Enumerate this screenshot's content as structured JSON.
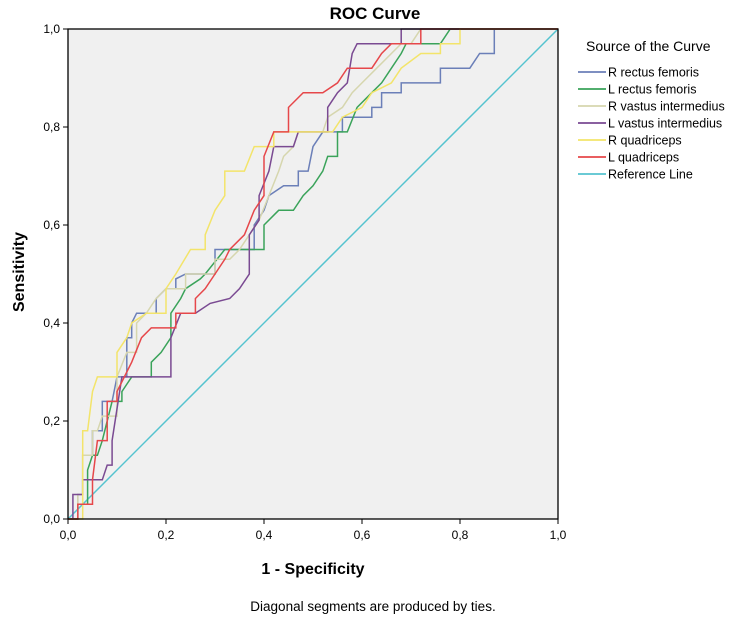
{
  "chart_data": {
    "type": "line",
    "title": "ROC Curve",
    "xlabel": "1 - Specificity",
    "ylabel": "Sensitivity",
    "xlim": [
      0,
      1
    ],
    "ylim": [
      0,
      1
    ],
    "x_ticks": [
      "0,0",
      "0,2",
      "0,4",
      "0,6",
      "0,8",
      "1,0"
    ],
    "y_ticks": [
      "0,0",
      "0,2",
      "0,4",
      "0,6",
      "0,8",
      "1,0"
    ],
    "legend_title": "Source of the Curve",
    "legend_position": "right",
    "footnote": "Diagonal segments are produced by ties.",
    "series": [
      {
        "name": "R rectus  femoris",
        "color": "#6b7fb8",
        "points": [
          [
            0,
            0
          ],
          [
            0.02,
            0
          ],
          [
            0.02,
            0.05
          ],
          [
            0.03,
            0.05
          ],
          [
            0.03,
            0.13
          ],
          [
            0.05,
            0.13
          ],
          [
            0.05,
            0.18
          ],
          [
            0.07,
            0.18
          ],
          [
            0.07,
            0.24
          ],
          [
            0.09,
            0.24
          ],
          [
            0.1,
            0.29
          ],
          [
            0.12,
            0.29
          ],
          [
            0.12,
            0.37
          ],
          [
            0.13,
            0.37
          ],
          [
            0.13,
            0.4
          ],
          [
            0.14,
            0.42
          ],
          [
            0.18,
            0.42
          ],
          [
            0.18,
            0.45
          ],
          [
            0.2,
            0.47
          ],
          [
            0.22,
            0.47
          ],
          [
            0.22,
            0.49
          ],
          [
            0.24,
            0.5
          ],
          [
            0.3,
            0.5
          ],
          [
            0.3,
            0.55
          ],
          [
            0.32,
            0.55
          ],
          [
            0.34,
            0.55
          ],
          [
            0.38,
            0.55
          ],
          [
            0.38,
            0.6
          ],
          [
            0.4,
            0.63
          ],
          [
            0.41,
            0.66
          ],
          [
            0.44,
            0.68
          ],
          [
            0.47,
            0.68
          ],
          [
            0.47,
            0.71
          ],
          [
            0.49,
            0.71
          ],
          [
            0.5,
            0.76
          ],
          [
            0.52,
            0.79
          ],
          [
            0.56,
            0.79
          ],
          [
            0.56,
            0.82
          ],
          [
            0.62,
            0.82
          ],
          [
            0.62,
            0.84
          ],
          [
            0.64,
            0.84
          ],
          [
            0.64,
            0.87
          ],
          [
            0.68,
            0.87
          ],
          [
            0.68,
            0.89
          ],
          [
            0.76,
            0.89
          ],
          [
            0.76,
            0.92
          ],
          [
            0.82,
            0.92
          ],
          [
            0.84,
            0.95
          ],
          [
            0.87,
            0.95
          ],
          [
            0.87,
            0.97
          ],
          [
            0.87,
            1
          ],
          [
            1,
            1
          ]
        ]
      },
      {
        "name": "L rectus  femoris",
        "color": "#3aa35a",
        "points": [
          [
            0,
            0
          ],
          [
            0.02,
            0
          ],
          [
            0.02,
            0.03
          ],
          [
            0.04,
            0.03
          ],
          [
            0.04,
            0.1
          ],
          [
            0.05,
            0.13
          ],
          [
            0.06,
            0.13
          ],
          [
            0.07,
            0.16
          ],
          [
            0.09,
            0.24
          ],
          [
            0.11,
            0.24
          ],
          [
            0.11,
            0.26
          ],
          [
            0.13,
            0.29
          ],
          [
            0.17,
            0.29
          ],
          [
            0.17,
            0.32
          ],
          [
            0.19,
            0.34
          ],
          [
            0.21,
            0.37
          ],
          [
            0.21,
            0.42
          ],
          [
            0.23,
            0.45
          ],
          [
            0.24,
            0.47
          ],
          [
            0.27,
            0.49
          ],
          [
            0.28,
            0.5
          ],
          [
            0.32,
            0.55
          ],
          [
            0.4,
            0.55
          ],
          [
            0.4,
            0.6
          ],
          [
            0.42,
            0.62
          ],
          [
            0.43,
            0.63
          ],
          [
            0.46,
            0.63
          ],
          [
            0.48,
            0.66
          ],
          [
            0.5,
            0.68
          ],
          [
            0.52,
            0.71
          ],
          [
            0.53,
            0.74
          ],
          [
            0.55,
            0.74
          ],
          [
            0.55,
            0.79
          ],
          [
            0.57,
            0.79
          ],
          [
            0.59,
            0.84
          ],
          [
            0.62,
            0.87
          ],
          [
            0.64,
            0.89
          ],
          [
            0.66,
            0.92
          ],
          [
            0.68,
            0.95
          ],
          [
            0.69,
            0.97
          ],
          [
            0.76,
            0.97
          ],
          [
            0.78,
            1
          ],
          [
            1,
            1
          ]
        ]
      },
      {
        "name": "R vastus intermedius",
        "color": "#d6d6ae",
        "points": [
          [
            0,
            0
          ],
          [
            0.02,
            0
          ],
          [
            0.02,
            0.05
          ],
          [
            0.03,
            0.05
          ],
          [
            0.03,
            0.13
          ],
          [
            0.05,
            0.13
          ],
          [
            0.05,
            0.18
          ],
          [
            0.06,
            0.18
          ],
          [
            0.07,
            0.21
          ],
          [
            0.1,
            0.21
          ],
          [
            0.1,
            0.29
          ],
          [
            0.12,
            0.34
          ],
          [
            0.14,
            0.34
          ],
          [
            0.14,
            0.4
          ],
          [
            0.16,
            0.42
          ],
          [
            0.18,
            0.45
          ],
          [
            0.2,
            0.47
          ],
          [
            0.24,
            0.47
          ],
          [
            0.24,
            0.5
          ],
          [
            0.3,
            0.5
          ],
          [
            0.3,
            0.53
          ],
          [
            0.33,
            0.53
          ],
          [
            0.35,
            0.55
          ],
          [
            0.37,
            0.58
          ],
          [
            0.39,
            0.61
          ],
          [
            0.41,
            0.66
          ],
          [
            0.43,
            0.71
          ],
          [
            0.44,
            0.74
          ],
          [
            0.46,
            0.76
          ],
          [
            0.47,
            0.79
          ],
          [
            0.52,
            0.79
          ],
          [
            0.53,
            0.82
          ],
          [
            0.56,
            0.84
          ],
          [
            0.58,
            0.87
          ],
          [
            0.6,
            0.89
          ],
          [
            0.63,
            0.92
          ],
          [
            0.66,
            0.95
          ],
          [
            0.68,
            0.97
          ],
          [
            0.7,
            0.97
          ],
          [
            0.72,
            1
          ],
          [
            1,
            1
          ]
        ]
      },
      {
        "name": "L vastus intermedius",
        "color": "#7a4a92",
        "points": [
          [
            0,
            0
          ],
          [
            0.01,
            0
          ],
          [
            0.01,
            0.05
          ],
          [
            0.03,
            0.05
          ],
          [
            0.03,
            0.08
          ],
          [
            0.07,
            0.08
          ],
          [
            0.08,
            0.11
          ],
          [
            0.09,
            0.11
          ],
          [
            0.09,
            0.16
          ],
          [
            0.11,
            0.29
          ],
          [
            0.21,
            0.29
          ],
          [
            0.21,
            0.37
          ],
          [
            0.23,
            0.42
          ],
          [
            0.26,
            0.42
          ],
          [
            0.29,
            0.44
          ],
          [
            0.33,
            0.45
          ],
          [
            0.35,
            0.47
          ],
          [
            0.37,
            0.5
          ],
          [
            0.37,
            0.58
          ],
          [
            0.39,
            0.61
          ],
          [
            0.39,
            0.66
          ],
          [
            0.41,
            0.71
          ],
          [
            0.42,
            0.76
          ],
          [
            0.46,
            0.76
          ],
          [
            0.47,
            0.79
          ],
          [
            0.53,
            0.79
          ],
          [
            0.53,
            0.84
          ],
          [
            0.55,
            0.87
          ],
          [
            0.57,
            0.89
          ],
          [
            0.58,
            0.95
          ],
          [
            0.59,
            0.97
          ],
          [
            0.68,
            0.97
          ],
          [
            0.68,
            1
          ],
          [
            1,
            1
          ]
        ]
      },
      {
        "name": "R quadriceps",
        "color": "#f3e46a",
        "points": [
          [
            0,
            0
          ],
          [
            0.03,
            0
          ],
          [
            0.03,
            0.18
          ],
          [
            0.04,
            0.18
          ],
          [
            0.05,
            0.26
          ],
          [
            0.06,
            0.29
          ],
          [
            0.1,
            0.29
          ],
          [
            0.1,
            0.34
          ],
          [
            0.12,
            0.37
          ],
          [
            0.13,
            0.4
          ],
          [
            0.16,
            0.42
          ],
          [
            0.2,
            0.42
          ],
          [
            0.2,
            0.47
          ],
          [
            0.22,
            0.5
          ],
          [
            0.25,
            0.55
          ],
          [
            0.28,
            0.55
          ],
          [
            0.28,
            0.58
          ],
          [
            0.3,
            0.63
          ],
          [
            0.32,
            0.66
          ],
          [
            0.32,
            0.71
          ],
          [
            0.36,
            0.71
          ],
          [
            0.38,
            0.76
          ],
          [
            0.42,
            0.76
          ],
          [
            0.42,
            0.79
          ],
          [
            0.54,
            0.79
          ],
          [
            0.56,
            0.82
          ],
          [
            0.6,
            0.84
          ],
          [
            0.62,
            0.87
          ],
          [
            0.66,
            0.89
          ],
          [
            0.68,
            0.92
          ],
          [
            0.72,
            0.95
          ],
          [
            0.76,
            0.95
          ],
          [
            0.76,
            0.97
          ],
          [
            0.8,
            0.97
          ],
          [
            0.8,
            1
          ],
          [
            1,
            1
          ]
        ]
      },
      {
        "name": "L quadriceps",
        "color": "#e6474a",
        "points": [
          [
            0,
            0
          ],
          [
            0.02,
            0
          ],
          [
            0.02,
            0.03
          ],
          [
            0.05,
            0.03
          ],
          [
            0.05,
            0.08
          ],
          [
            0.06,
            0.16
          ],
          [
            0.08,
            0.16
          ],
          [
            0.08,
            0.24
          ],
          [
            0.1,
            0.24
          ],
          [
            0.1,
            0.26
          ],
          [
            0.13,
            0.32
          ],
          [
            0.15,
            0.37
          ],
          [
            0.17,
            0.39
          ],
          [
            0.22,
            0.39
          ],
          [
            0.22,
            0.42
          ],
          [
            0.26,
            0.42
          ],
          [
            0.26,
            0.45
          ],
          [
            0.28,
            0.47
          ],
          [
            0.3,
            0.5
          ],
          [
            0.32,
            0.53
          ],
          [
            0.33,
            0.55
          ],
          [
            0.36,
            0.58
          ],
          [
            0.38,
            0.63
          ],
          [
            0.4,
            0.66
          ],
          [
            0.4,
            0.74
          ],
          [
            0.42,
            0.79
          ],
          [
            0.45,
            0.79
          ],
          [
            0.45,
            0.84
          ],
          [
            0.48,
            0.87
          ],
          [
            0.52,
            0.87
          ],
          [
            0.55,
            0.89
          ],
          [
            0.57,
            0.92
          ],
          [
            0.62,
            0.92
          ],
          [
            0.64,
            0.95
          ],
          [
            0.66,
            0.97
          ],
          [
            0.72,
            0.97
          ],
          [
            0.72,
            1
          ],
          [
            1,
            1
          ]
        ]
      },
      {
        "name": "Reference Line",
        "color": "#55c3cf",
        "points": [
          [
            0,
            0
          ],
          [
            1,
            1
          ]
        ]
      }
    ]
  },
  "colors": {
    "plot_background": "#f0f0f0",
    "frame": "#000000"
  }
}
